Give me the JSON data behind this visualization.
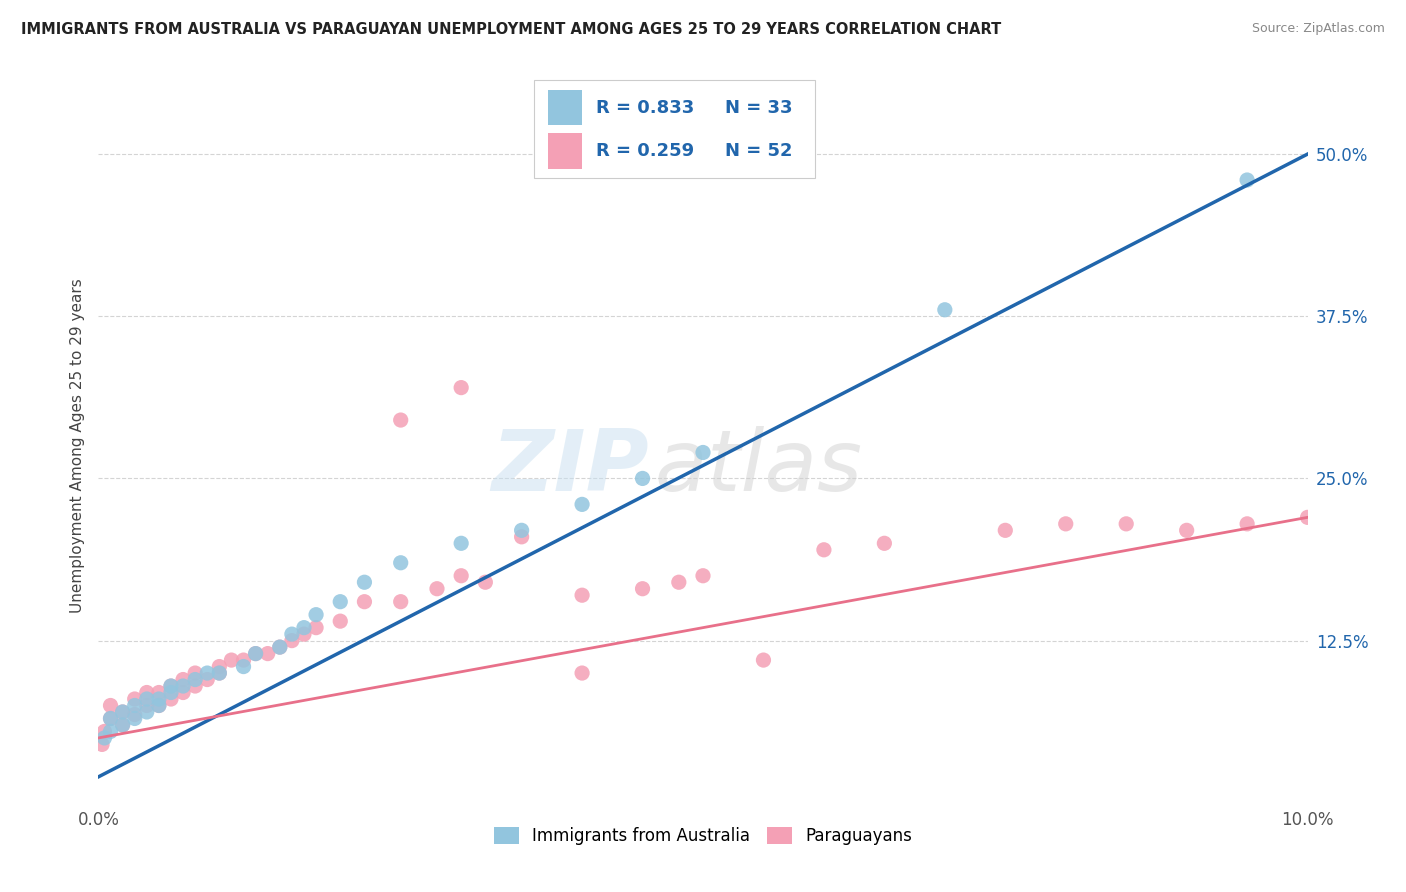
{
  "title": "IMMIGRANTS FROM AUSTRALIA VS PARAGUAYAN UNEMPLOYMENT AMONG AGES 25 TO 29 YEARS CORRELATION CHART",
  "source": "Source: ZipAtlas.com",
  "ylabel": "Unemployment Among Ages 25 to 29 years",
  "legend_label1": "Immigrants from Australia",
  "legend_label2": "Paraguayans",
  "R1": 0.833,
  "N1": 33,
  "R2": 0.259,
  "N2": 52,
  "color_blue": "#92c5de",
  "color_pink": "#f4a0b5",
  "color_blue_line": "#2166ac",
  "color_pink_line": "#e8708a",
  "color_blue_text": "#2166ac",
  "xlim": [
    0.0,
    0.1
  ],
  "ylim": [
    0.0,
    0.55
  ],
  "yticks": [
    0.0,
    0.125,
    0.25,
    0.375,
    0.5
  ],
  "ytick_labels": [
    "",
    "12.5%",
    "25.0%",
    "37.5%",
    "50.0%"
  ],
  "xticks": [
    0.0,
    0.02,
    0.04,
    0.06,
    0.08,
    0.1
  ],
  "xtick_labels": [
    "0.0%",
    "",
    "",
    "",
    "",
    "10.0%"
  ],
  "blue_scatter_x": [
    0.0005,
    0.001,
    0.001,
    0.002,
    0.002,
    0.003,
    0.003,
    0.004,
    0.004,
    0.005,
    0.005,
    0.006,
    0.006,
    0.007,
    0.008,
    0.009,
    0.01,
    0.012,
    0.013,
    0.015,
    0.016,
    0.017,
    0.018,
    0.02,
    0.022,
    0.025,
    0.03,
    0.035,
    0.04,
    0.045,
    0.05,
    0.07,
    0.095
  ],
  "blue_scatter_y": [
    0.05,
    0.055,
    0.065,
    0.06,
    0.07,
    0.065,
    0.075,
    0.07,
    0.08,
    0.075,
    0.08,
    0.085,
    0.09,
    0.09,
    0.095,
    0.1,
    0.1,
    0.105,
    0.115,
    0.12,
    0.13,
    0.135,
    0.145,
    0.155,
    0.17,
    0.185,
    0.2,
    0.21,
    0.23,
    0.25,
    0.27,
    0.38,
    0.48
  ],
  "pink_scatter_x": [
    0.0003,
    0.0005,
    0.001,
    0.001,
    0.002,
    0.002,
    0.003,
    0.003,
    0.004,
    0.004,
    0.005,
    0.005,
    0.006,
    0.006,
    0.007,
    0.007,
    0.008,
    0.008,
    0.009,
    0.01,
    0.01,
    0.011,
    0.012,
    0.013,
    0.014,
    0.015,
    0.016,
    0.017,
    0.018,
    0.02,
    0.022,
    0.025,
    0.028,
    0.03,
    0.032,
    0.035,
    0.04,
    0.045,
    0.048,
    0.05,
    0.06,
    0.065,
    0.075,
    0.08,
    0.085,
    0.09,
    0.095,
    0.1,
    0.025,
    0.03,
    0.04,
    0.055
  ],
  "pink_scatter_y": [
    0.045,
    0.055,
    0.065,
    0.075,
    0.06,
    0.07,
    0.068,
    0.08,
    0.075,
    0.085,
    0.075,
    0.085,
    0.08,
    0.09,
    0.085,
    0.095,
    0.09,
    0.1,
    0.095,
    0.1,
    0.105,
    0.11,
    0.11,
    0.115,
    0.115,
    0.12,
    0.125,
    0.13,
    0.135,
    0.14,
    0.155,
    0.155,
    0.165,
    0.175,
    0.17,
    0.205,
    0.16,
    0.165,
    0.17,
    0.175,
    0.195,
    0.2,
    0.21,
    0.215,
    0.215,
    0.21,
    0.215,
    0.22,
    0.295,
    0.32,
    0.1,
    0.11
  ],
  "watermark_zip": "ZIP",
  "watermark_atlas": "atlas",
  "background_color": "#ffffff",
  "grid_color": "#d0d0d0"
}
